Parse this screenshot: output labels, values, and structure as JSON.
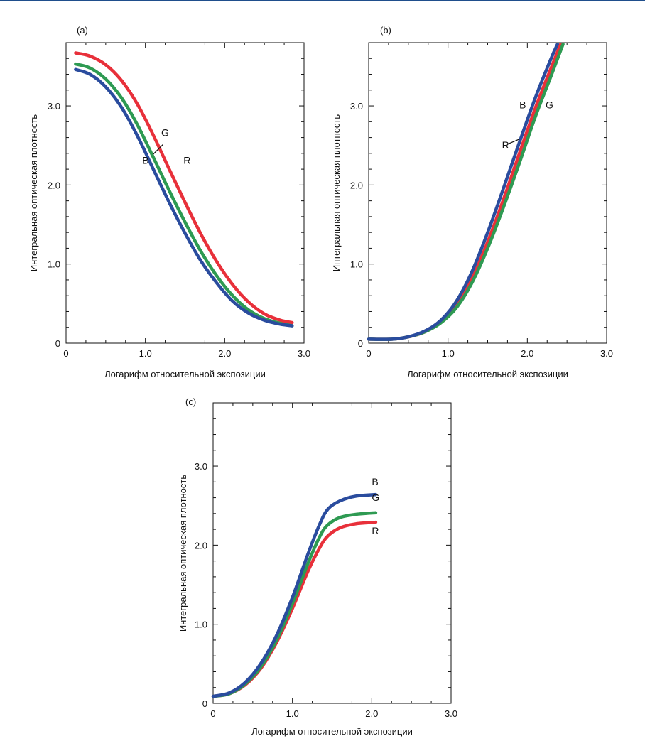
{
  "chart_data": [
    {
      "id": "a",
      "type": "line",
      "panel_label": "(a)",
      "xlabel": "Логарифм относительной экспозиции",
      "ylabel": "Интегральная оптическая плотность",
      "xlim": [
        0,
        3.0
      ],
      "ylim": [
        0,
        3.8
      ],
      "x_ticks": [
        0,
        1.0,
        2.0,
        3.0
      ],
      "x_tick_labels": [
        "0",
        "1.0",
        "2.0",
        "3.0"
      ],
      "y_ticks": [
        0,
        1.0,
        2.0,
        3.0
      ],
      "y_tick_labels": [
        "0",
        "1.0",
        "2.0",
        "3.0"
      ],
      "grid": false,
      "series": [
        {
          "name": "R",
          "color": "#e8303a",
          "points": [
            [
              0.12,
              3.67
            ],
            [
              0.3,
              3.63
            ],
            [
              0.5,
              3.52
            ],
            [
              0.7,
              3.32
            ],
            [
              0.9,
              3.02
            ],
            [
              1.1,
              2.63
            ],
            [
              1.3,
              2.2
            ],
            [
              1.5,
              1.78
            ],
            [
              1.7,
              1.38
            ],
            [
              1.9,
              1.03
            ],
            [
              2.1,
              0.74
            ],
            [
              2.3,
              0.52
            ],
            [
              2.5,
              0.37
            ],
            [
              2.7,
              0.29
            ],
            [
              2.85,
              0.26
            ]
          ]
        },
        {
          "name": "G",
          "color": "#2e9a52",
          "points": [
            [
              0.12,
              3.53
            ],
            [
              0.3,
              3.48
            ],
            [
              0.5,
              3.34
            ],
            [
              0.7,
              3.1
            ],
            [
              0.9,
              2.76
            ],
            [
              1.1,
              2.35
            ],
            [
              1.3,
              1.93
            ],
            [
              1.5,
              1.53
            ],
            [
              1.7,
              1.16
            ],
            [
              1.9,
              0.85
            ],
            [
              2.1,
              0.6
            ],
            [
              2.3,
              0.42
            ],
            [
              2.5,
              0.31
            ],
            [
              2.7,
              0.25
            ],
            [
              2.85,
              0.22
            ]
          ]
        },
        {
          "name": "B",
          "color": "#2a4c9e",
          "points": [
            [
              0.12,
              3.46
            ],
            [
              0.3,
              3.4
            ],
            [
              0.5,
              3.24
            ],
            [
              0.7,
              2.98
            ],
            [
              0.9,
              2.62
            ],
            [
              1.1,
              2.2
            ],
            [
              1.3,
              1.78
            ],
            [
              1.5,
              1.39
            ],
            [
              1.7,
              1.04
            ],
            [
              1.9,
              0.76
            ],
            [
              2.1,
              0.53
            ],
            [
              2.3,
              0.38
            ],
            [
              2.5,
              0.29
            ],
            [
              2.7,
              0.24
            ],
            [
              2.85,
              0.22
            ]
          ]
        }
      ],
      "annotations": [
        {
          "text": "G",
          "x": 1.2,
          "y": 2.62
        },
        {
          "text": "B",
          "x": 0.96,
          "y": 2.27
        },
        {
          "text": "R",
          "x": 1.48,
          "y": 2.27
        }
      ],
      "leader": {
        "from": [
          1.22,
          2.51
        ],
        "to": [
          1.1,
          2.39
        ]
      }
    },
    {
      "id": "b",
      "type": "line",
      "panel_label": "(b)",
      "xlabel": "Логарифм относительной экспозиции",
      "ylabel": "Интегральная оптическая плотность",
      "xlim": [
        0,
        3.0
      ],
      "ylim": [
        0,
        3.8
      ],
      "x_ticks": [
        0,
        1.0,
        2.0,
        3.0
      ],
      "x_tick_labels": [
        "0",
        "1.0",
        "2.0",
        "3.0"
      ],
      "y_ticks": [
        0,
        1.0,
        2.0,
        3.0
      ],
      "y_tick_labels": [
        "0",
        "1.0",
        "2.0",
        "3.0"
      ],
      "grid": false,
      "series": [
        {
          "name": "R",
          "color": "#e8303a",
          "points": [
            [
              0.0,
              0.05
            ],
            [
              0.3,
              0.05
            ],
            [
              0.5,
              0.08
            ],
            [
              0.7,
              0.14
            ],
            [
              0.9,
              0.26
            ],
            [
              1.1,
              0.47
            ],
            [
              1.3,
              0.81
            ],
            [
              1.5,
              1.28
            ],
            [
              1.7,
              1.82
            ],
            [
              1.9,
              2.4
            ],
            [
              2.1,
              2.97
            ],
            [
              2.3,
              3.48
            ],
            [
              2.42,
              3.78
            ]
          ]
        },
        {
          "name": "G",
          "color": "#2e9a52",
          "points": [
            [
              0.0,
              0.05
            ],
            [
              0.3,
              0.05
            ],
            [
              0.5,
              0.08
            ],
            [
              0.7,
              0.14
            ],
            [
              0.9,
              0.25
            ],
            [
              1.1,
              0.44
            ],
            [
              1.3,
              0.76
            ],
            [
              1.5,
              1.2
            ],
            [
              1.7,
              1.72
            ],
            [
              1.9,
              2.28
            ],
            [
              2.1,
              2.86
            ],
            [
              2.3,
              3.38
            ],
            [
              2.45,
              3.78
            ]
          ]
        },
        {
          "name": "B",
          "color": "#2a4c9e",
          "points": [
            [
              0.0,
              0.05
            ],
            [
              0.3,
              0.05
            ],
            [
              0.5,
              0.08
            ],
            [
              0.7,
              0.15
            ],
            [
              0.9,
              0.28
            ],
            [
              1.1,
              0.52
            ],
            [
              1.3,
              0.9
            ],
            [
              1.5,
              1.4
            ],
            [
              1.7,
              1.96
            ],
            [
              1.9,
              2.54
            ],
            [
              2.1,
              3.1
            ],
            [
              2.3,
              3.6
            ],
            [
              2.38,
              3.78
            ]
          ]
        }
      ],
      "annotations": [
        {
          "text": "B",
          "x": 1.9,
          "y": 2.97
        },
        {
          "text": "G",
          "x": 2.23,
          "y": 2.97
        },
        {
          "text": "R",
          "x": 1.68,
          "y": 2.46
        }
      ],
      "leader": {
        "from": [
          1.76,
          2.52
        ],
        "to": [
          1.9,
          2.58
        ]
      }
    },
    {
      "id": "c",
      "type": "line",
      "panel_label": "(c)",
      "xlabel": "Логарифм относительной экспозиции",
      "ylabel": "Интегральная оптическая плотность",
      "xlim": [
        0,
        3.0
      ],
      "ylim": [
        0,
        3.8
      ],
      "x_ticks": [
        0,
        1.0,
        2.0,
        3.0
      ],
      "x_tick_labels": [
        "0",
        "1.0",
        "2.0",
        "3.0"
      ],
      "y_ticks": [
        0,
        1.0,
        2.0,
        3.0
      ],
      "y_tick_labels": [
        "0",
        "1.0",
        "2.0",
        "3.0"
      ],
      "grid": false,
      "series": [
        {
          "name": "R",
          "color": "#e8303a",
          "points": [
            [
              0.0,
              0.09
            ],
            [
              0.2,
              0.12
            ],
            [
              0.4,
              0.23
            ],
            [
              0.6,
              0.44
            ],
            [
              0.8,
              0.77
            ],
            [
              1.0,
              1.2
            ],
            [
              1.2,
              1.68
            ],
            [
              1.35,
              1.98
            ],
            [
              1.45,
              2.12
            ],
            [
              1.6,
              2.22
            ],
            [
              1.8,
              2.27
            ],
            [
              2.05,
              2.29
            ]
          ]
        },
        {
          "name": "G",
          "color": "#2e9a52",
          "points": [
            [
              0.0,
              0.09
            ],
            [
              0.2,
              0.12
            ],
            [
              0.4,
              0.24
            ],
            [
              0.6,
              0.46
            ],
            [
              0.8,
              0.8
            ],
            [
              1.0,
              1.26
            ],
            [
              1.2,
              1.78
            ],
            [
              1.35,
              2.12
            ],
            [
              1.45,
              2.26
            ],
            [
              1.6,
              2.35
            ],
            [
              1.8,
              2.39
            ],
            [
              2.05,
              2.41
            ]
          ]
        },
        {
          "name": "B",
          "color": "#2a4c9e",
          "points": [
            [
              0.0,
              0.09
            ],
            [
              0.2,
              0.13
            ],
            [
              0.4,
              0.26
            ],
            [
              0.6,
              0.5
            ],
            [
              0.8,
              0.86
            ],
            [
              1.0,
              1.34
            ],
            [
              1.2,
              1.9
            ],
            [
              1.35,
              2.28
            ],
            [
              1.45,
              2.46
            ],
            [
              1.6,
              2.56
            ],
            [
              1.8,
              2.62
            ],
            [
              2.05,
              2.64
            ]
          ]
        }
      ],
      "annotations": [
        {
          "text": "B",
          "x": 2.0,
          "y": 2.76
        },
        {
          "text": "G",
          "x": 2.0,
          "y": 2.56
        },
        {
          "text": "R",
          "x": 2.0,
          "y": 2.14
        }
      ]
    }
  ]
}
